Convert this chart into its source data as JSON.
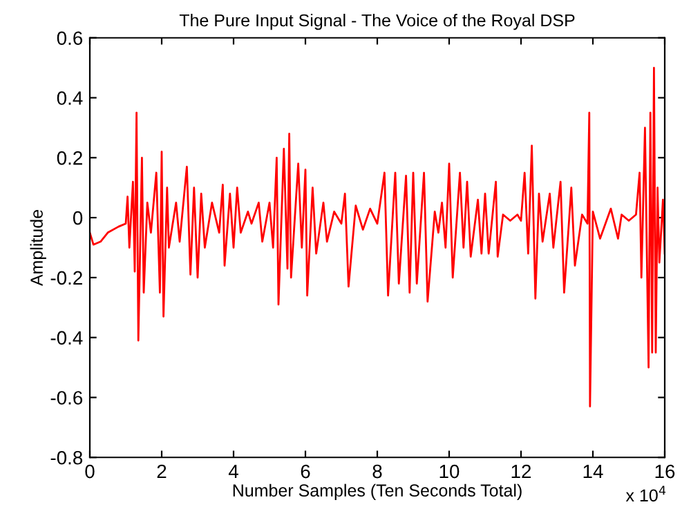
{
  "chart_data": {
    "type": "line",
    "title": "The Pure Input Signal - The Voice of the Royal DSP",
    "xlabel": "Number Samples (Ten Seconds Total)",
    "ylabel": "Amplitude",
    "annotations": [
      "x 10$^{4}$"
    ],
    "x": [
      0,
      0.1,
      0.3,
      0.5,
      0.8,
      1.0,
      1.05,
      1.1,
      1.2,
      1.25,
      1.3,
      1.35,
      1.45,
      1.5,
      1.6,
      1.7,
      1.85,
      1.95,
      2.0,
      2.05,
      2.15,
      2.2,
      2.4,
      2.5,
      2.7,
      2.8,
      2.9,
      3.0,
      3.1,
      3.2,
      3.4,
      3.6,
      3.7,
      3.75,
      3.9,
      4.0,
      4.1,
      4.2,
      4.4,
      4.5,
      4.7,
      4.8,
      5.0,
      5.1,
      5.2,
      5.25,
      5.4,
      5.5,
      5.55,
      5.6,
      5.8,
      5.9,
      6.0,
      6.05,
      6.2,
      6.3,
      6.5,
      6.6,
      6.8,
      7.0,
      7.1,
      7.2,
      7.4,
      7.6,
      7.8,
      8.0,
      8.2,
      8.3,
      8.5,
      8.6,
      8.8,
      8.9,
      9.0,
      9.1,
      9.3,
      9.4,
      9.6,
      9.7,
      9.8,
      9.9,
      10.0,
      10.1,
      10.3,
      10.4,
      10.5,
      10.6,
      10.8,
      10.9,
      11.0,
      11.1,
      11.3,
      11.35,
      11.5,
      11.7,
      11.9,
      12.0,
      12.1,
      12.2,
      12.3,
      12.4,
      12.5,
      12.6,
      12.8,
      12.9,
      13.1,
      13.2,
      13.4,
      13.5,
      13.7,
      13.85,
      13.9,
      13.92,
      14.0,
      14.2,
      14.5,
      14.7,
      14.8,
      15.0,
      15.2,
      15.3,
      15.35,
      15.45,
      15.55,
      15.6,
      15.65,
      15.7,
      15.75,
      15.8,
      15.85,
      15.95,
      16.0
    ],
    "series": [
      {
        "color": "#ff0000",
        "values": [
          -0.05,
          -0.09,
          -0.08,
          -0.05,
          -0.03,
          -0.02,
          0.07,
          -0.1,
          0.12,
          -0.18,
          0.35,
          -0.41,
          0.2,
          -0.25,
          0.05,
          -0.05,
          0.15,
          -0.25,
          0.22,
          -0.33,
          0.1,
          -0.1,
          0.05,
          -0.08,
          0.17,
          -0.19,
          0.1,
          -0.2,
          0.08,
          -0.1,
          0.05,
          -0.05,
          0.11,
          -0.16,
          0.08,
          -0.1,
          0.1,
          -0.05,
          0.02,
          -0.02,
          0.05,
          -0.08,
          0.05,
          -0.1,
          0.2,
          -0.29,
          0.23,
          -0.17,
          0.28,
          -0.2,
          0.18,
          -0.1,
          0.16,
          -0.26,
          0.1,
          -0.12,
          0.05,
          -0.08,
          0.02,
          -0.02,
          0.08,
          -0.23,
          0.04,
          -0.04,
          0.03,
          -0.02,
          0.15,
          -0.26,
          0.15,
          -0.22,
          0.14,
          -0.25,
          0.15,
          -0.22,
          0.15,
          -0.28,
          0.02,
          -0.05,
          0.05,
          -0.1,
          0.18,
          -0.2,
          0.15,
          -0.1,
          0.12,
          -0.13,
          0.06,
          -0.12,
          0.08,
          -0.12,
          0.12,
          -0.13,
          0.01,
          -0.01,
          0.01,
          -0.01,
          0.15,
          -0.12,
          0.24,
          -0.27,
          0.08,
          -0.08,
          0.08,
          -0.1,
          0.12,
          -0.25,
          0.1,
          -0.16,
          0.01,
          -0.02,
          0.35,
          -0.63,
          0.02,
          -0.07,
          0.03,
          -0.07,
          0.01,
          -0.01,
          0.01,
          0.15,
          -0.2,
          0.3,
          -0.5,
          0.35,
          -0.45,
          0.5,
          -0.45,
          0.1,
          -0.15,
          0.06,
          -0.12
        ]
      }
    ],
    "xlim": [
      0,
      16
    ],
    "xticks": [
      0,
      2,
      4,
      6,
      8,
      10,
      12,
      14,
      16
    ],
    "ylim": [
      -0.8,
      0.6
    ],
    "yticks": [
      -0.8,
      -0.6,
      -0.4,
      -0.2,
      0,
      0.2,
      0.4,
      0.6
    ],
    "grid": false,
    "legend": false,
    "marker": "none",
    "line_style": "solid"
  }
}
